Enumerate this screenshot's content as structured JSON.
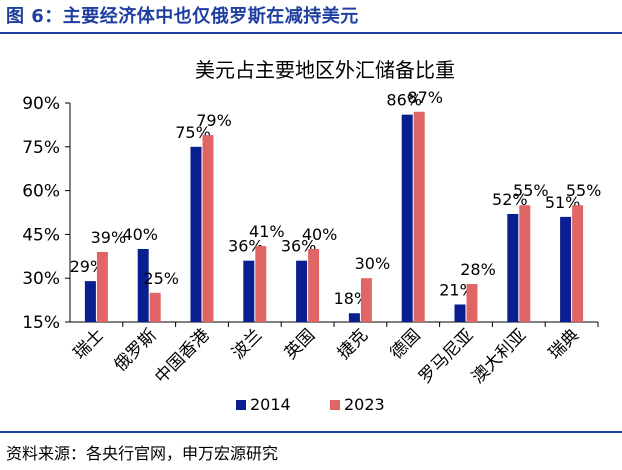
{
  "figure_title": "图 6：主要经济体中也仅俄罗斯在减持美元",
  "source": "资料来源：各央行官网，申万宏源研究",
  "colors": {
    "accent": "#1f3fa0",
    "series_2014": "#0a1f8f",
    "series_2023": "#e06666"
  },
  "chart_data": {
    "type": "bar",
    "title": "美元占主要地区外汇储备比重",
    "xlabel": "",
    "ylabel": "",
    "categories": [
      "瑞士",
      "俄罗斯",
      "中国香港",
      "波兰",
      "英国",
      "捷克",
      "德国",
      "罗马尼亚",
      "澳大利亚",
      "瑞典"
    ],
    "series": [
      {
        "name": "2014",
        "values": [
          29,
          40,
          75,
          36,
          36,
          18,
          86,
          21,
          52,
          51
        ],
        "labels": [
          "29%",
          "40%",
          "75%",
          "36%",
          "36%",
          "18%",
          "86%",
          "21%",
          "52%",
          "51%"
        ]
      },
      {
        "name": "2023",
        "values": [
          39,
          25,
          79,
          41,
          40,
          30,
          87,
          28,
          55,
          55
        ],
        "labels": [
          "39%",
          "25%",
          "79%",
          "41%",
          "40%",
          "30%",
          "87%",
          "28%",
          "55%",
          "55%"
        ]
      }
    ],
    "ylim": [
      15,
      90
    ],
    "yticks": [
      15,
      30,
      45,
      60,
      75,
      90
    ],
    "ytick_labels": [
      "15%",
      "30%",
      "45%",
      "60%",
      "75%",
      "90%"
    ],
    "grid": false,
    "legend_position": "bottom"
  }
}
